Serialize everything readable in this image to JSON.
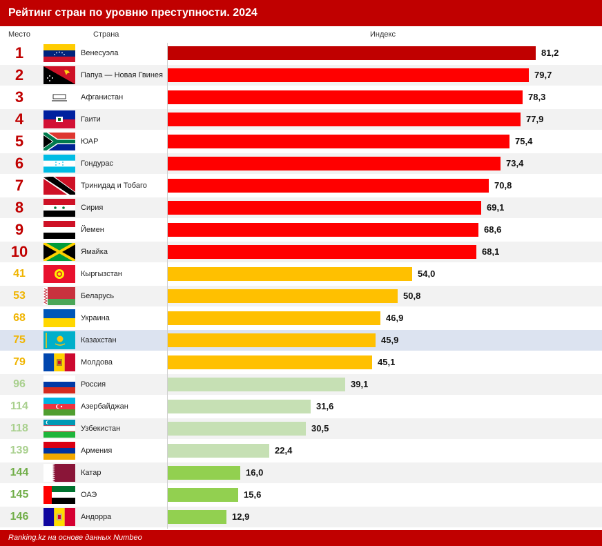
{
  "header": {
    "title": "Рейтинг стран по уровню преступности. 2024"
  },
  "columns": {
    "place": "Место",
    "country": "Страна",
    "index": "Индекс"
  },
  "footer": {
    "source": "Ranking.kz на основе данных Numbeo"
  },
  "colors": {
    "red": "#ff0000",
    "top": "#c00000",
    "orange": "#ffc000",
    "light_green": "#c6e0b4",
    "green": "#92d050",
    "rank_red": "#c00000",
    "rank_orange": "#f0b400",
    "rank_light_green": "#a9d08e",
    "rank_green": "#70ad47"
  },
  "chart_data": {
    "type": "bar",
    "orientation": "horizontal",
    "title": "Рейтинг стран по уровню преступности. 2024",
    "xlabel": "Индекс",
    "xlim": [
      0,
      81.2
    ],
    "highlight": "Казахстан",
    "rows": [
      {
        "rank": "1",
        "country": "Венесуэла",
        "value": 81.2,
        "label": "81,2",
        "group": "top",
        "flag": "venezuela-flag"
      },
      {
        "rank": "2",
        "country": "Папуа — Новая Гвинея",
        "value": 79.7,
        "label": "79,7",
        "group": "red",
        "flag": "papua-new-guinea-flag"
      },
      {
        "rank": "3",
        "country": "Афганистан",
        "value": 78.3,
        "label": "78,3",
        "group": "red",
        "flag": "afghanistan-flag"
      },
      {
        "rank": "4",
        "country": "Гаити",
        "value": 77.9,
        "label": "77,9",
        "group": "red",
        "flag": "haiti-flag"
      },
      {
        "rank": "5",
        "country": "ЮАР",
        "value": 75.4,
        "label": "75,4",
        "group": "red",
        "flag": "south-africa-flag"
      },
      {
        "rank": "6",
        "country": "Гондурас",
        "value": 73.4,
        "label": "73,4",
        "group": "red",
        "flag": "honduras-flag"
      },
      {
        "rank": "7",
        "country": "Тринидад и Тобаго",
        "value": 70.8,
        "label": "70,8",
        "group": "red",
        "flag": "trinidad-and-tobago-flag"
      },
      {
        "rank": "8",
        "country": "Сирия",
        "value": 69.1,
        "label": "69,1",
        "group": "red",
        "flag": "syria-flag"
      },
      {
        "rank": "9",
        "country": "Йемен",
        "value": 68.6,
        "label": "68,6",
        "group": "red",
        "flag": "yemen-flag"
      },
      {
        "rank": "10",
        "country": "Ямайка",
        "value": 68.1,
        "label": "68,1",
        "group": "red",
        "flag": "jamaica-flag"
      },
      {
        "rank": "41",
        "country": "Кыргызстан",
        "value": 54.0,
        "label": "54,0",
        "group": "orange",
        "flag": "kyrgyzstan-flag"
      },
      {
        "rank": "53",
        "country": "Беларусь",
        "value": 50.8,
        "label": "50,8",
        "group": "orange",
        "flag": "belarus-flag"
      },
      {
        "rank": "68",
        "country": "Украина",
        "value": 46.9,
        "label": "46,9",
        "group": "orange",
        "flag": "ukraine-flag"
      },
      {
        "rank": "75",
        "country": "Казахстан",
        "value": 45.9,
        "label": "45,9",
        "group": "orange",
        "flag": "kazakhstan-flag"
      },
      {
        "rank": "79",
        "country": "Молдова",
        "value": 45.1,
        "label": "45,1",
        "group": "orange",
        "flag": "moldova-flag"
      },
      {
        "rank": "96",
        "country": "Россия",
        "value": 39.1,
        "label": "39,1",
        "group": "light_green",
        "flag": "russia-flag"
      },
      {
        "rank": "114",
        "country": "Азербайджан",
        "value": 31.6,
        "label": "31,6",
        "group": "light_green",
        "flag": "azerbaijan-flag"
      },
      {
        "rank": "118",
        "country": "Узбекистан",
        "value": 30.5,
        "label": "30,5",
        "group": "light_green",
        "flag": "uzbekistan-flag"
      },
      {
        "rank": "139",
        "country": "Армения",
        "value": 22.4,
        "label": "22,4",
        "group": "light_green",
        "flag": "armenia-flag"
      },
      {
        "rank": "144",
        "country": "Катар",
        "value": 16.0,
        "label": "16,0",
        "group": "green",
        "flag": "qatar-flag"
      },
      {
        "rank": "145",
        "country": "ОАЭ",
        "value": 15.6,
        "label": "15,6",
        "group": "green",
        "flag": "uae-flag"
      },
      {
        "rank": "146",
        "country": "Андорра",
        "value": 12.9,
        "label": "12,9",
        "group": "green",
        "flag": "andorra-flag"
      }
    ]
  }
}
